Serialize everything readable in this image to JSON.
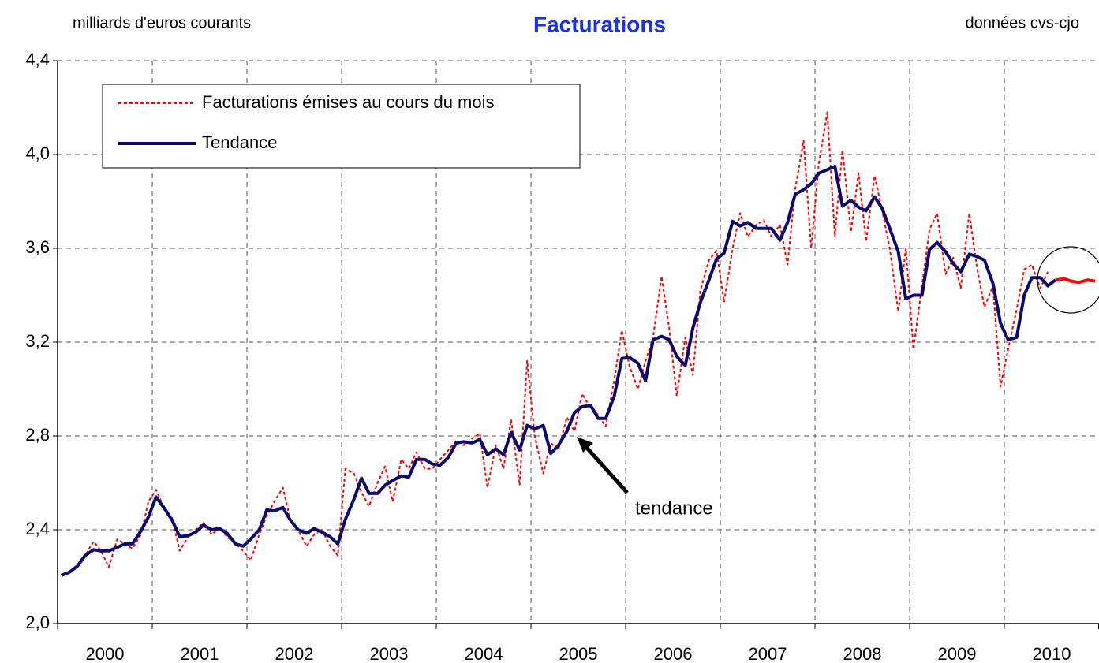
{
  "chart_data": {
    "type": "line",
    "title": "Facturations",
    "subtitle_left": "milliards d'euros courants",
    "subtitle_right": "données cvs-cjo",
    "annotation": "tendance",
    "legend": "upper left",
    "grid": true,
    "xlim": [
      2000,
      2011
    ],
    "xticks": [
      2000,
      2001,
      2002,
      2003,
      2004,
      2005,
      2006,
      2007,
      2008,
      2009,
      2010,
      2011
    ],
    "x_labels": [
      {
        "value": 2000.5,
        "label": "2000"
      },
      {
        "value": 2001.5,
        "label": "2001"
      },
      {
        "value": 2002.5,
        "label": "2002"
      },
      {
        "value": 2003.5,
        "label": "2003"
      },
      {
        "value": 2004.5,
        "label": "2004"
      },
      {
        "value": 2005.5,
        "label": "2005"
      },
      {
        "value": 2006.5,
        "label": "2006"
      },
      {
        "value": 2007.5,
        "label": "2007"
      },
      {
        "value": 2008.5,
        "label": "2008"
      },
      {
        "value": 2009.5,
        "label": "2009"
      },
      {
        "value": 2010.5,
        "label": "2010"
      }
    ],
    "ylim": [
      2.0,
      4.4
    ],
    "yticks": [
      {
        "value": 2.0,
        "label": "2,0"
      },
      {
        "value": 2.4,
        "label": "2,4"
      },
      {
        "value": 2.8,
        "label": "2,8"
      },
      {
        "value": 3.2,
        "label": "3,2"
      },
      {
        "value": 3.6,
        "label": "3,6"
      },
      {
        "value": 4.0,
        "label": "4,0"
      },
      {
        "value": 4.4,
        "label": "4,4"
      }
    ],
    "x": [
      2000.04,
      2000.13,
      2000.21,
      2000.29,
      2000.38,
      2000.46,
      2000.54,
      2000.63,
      2000.71,
      2000.79,
      2000.88,
      2000.96,
      2001.04,
      2001.13,
      2001.21,
      2001.29,
      2001.38,
      2001.46,
      2001.54,
      2001.63,
      2001.71,
      2001.79,
      2001.88,
      2001.96,
      2002.04,
      2002.13,
      2002.21,
      2002.29,
      2002.38,
      2002.46,
      2002.54,
      2002.63,
      2002.71,
      2002.79,
      2002.88,
      2002.96,
      2003.04,
      2003.13,
      2003.21,
      2003.29,
      2003.38,
      2003.46,
      2003.54,
      2003.63,
      2003.71,
      2003.79,
      2003.88,
      2003.96,
      2004.04,
      2004.13,
      2004.21,
      2004.29,
      2004.38,
      2004.46,
      2004.54,
      2004.63,
      2004.71,
      2004.79,
      2004.88,
      2004.96,
      2005.04,
      2005.13,
      2005.21,
      2005.29,
      2005.38,
      2005.46,
      2005.54,
      2005.63,
      2005.71,
      2005.79,
      2005.88,
      2005.96,
      2006.04,
      2006.13,
      2006.21,
      2006.29,
      2006.38,
      2006.46,
      2006.54,
      2006.63,
      2006.71,
      2006.79,
      2006.88,
      2006.96,
      2007.04,
      2007.13,
      2007.21,
      2007.29,
      2007.38,
      2007.46,
      2007.54,
      2007.63,
      2007.71,
      2007.79,
      2007.88,
      2007.96,
      2008.04,
      2008.13,
      2008.21,
      2008.29,
      2008.38,
      2008.46,
      2008.54,
      2008.63,
      2008.71,
      2008.79,
      2008.88,
      2008.96,
      2009.04,
      2009.13,
      2009.21,
      2009.29,
      2009.38,
      2009.46,
      2009.54,
      2009.63,
      2009.71,
      2009.79,
      2009.88,
      2009.96,
      2010.04,
      2010.13,
      2010.21,
      2010.29,
      2010.38,
      2010.46,
      2010.54,
      2010.63,
      2010.71,
      2010.79,
      2010.88,
      2010.96
    ],
    "series": [
      {
        "name": "Facturations émises au cours du mois",
        "color": "#ff0000",
        "style": "dashed",
        "values": [
          2.21,
          2.22,
          2.25,
          2.29,
          2.35,
          2.31,
          2.24,
          2.36,
          2.34,
          2.32,
          2.38,
          2.52,
          2.57,
          2.49,
          2.45,
          2.31,
          2.37,
          2.4,
          2.43,
          2.38,
          2.41,
          2.37,
          2.34,
          2.31,
          2.27,
          2.38,
          2.46,
          2.52,
          2.58,
          2.44,
          2.4,
          2.33,
          2.38,
          2.4,
          2.33,
          2.29,
          2.66,
          2.64,
          2.56,
          2.5,
          2.6,
          2.67,
          2.52,
          2.7,
          2.66,
          2.73,
          2.66,
          2.66,
          2.7,
          2.74,
          2.78,
          2.76,
          2.79,
          2.81,
          2.58,
          2.76,
          2.66,
          2.87,
          2.59,
          3.12,
          2.8,
          2.64,
          2.77,
          2.74,
          2.88,
          2.82,
          2.98,
          2.92,
          2.89,
          2.84,
          3.04,
          3.25,
          3.1,
          3.0,
          3.12,
          3.22,
          3.48,
          3.26,
          2.97,
          3.22,
          3.06,
          3.42,
          3.55,
          3.59,
          3.37,
          3.6,
          3.75,
          3.65,
          3.7,
          3.72,
          3.65,
          3.7,
          3.53,
          3.85,
          4.06,
          3.6,
          3.96,
          4.18,
          3.65,
          4.02,
          3.67,
          3.92,
          3.63,
          3.91,
          3.76,
          3.6,
          3.33,
          3.6,
          3.17,
          3.44,
          3.68,
          3.75,
          3.49,
          3.56,
          3.43,
          3.75,
          3.52,
          3.35,
          3.44,
          3.01,
          3.17,
          3.34,
          3.51,
          3.53,
          3.43,
          3.5,
          null,
          null,
          null,
          null,
          null,
          null
        ]
      },
      {
        "name": "Tendance",
        "color": "#0a0a6e",
        "style": "solid",
        "values": [
          2.205,
          2.22,
          2.245,
          2.29,
          2.315,
          2.31,
          2.31,
          2.325,
          2.34,
          2.34,
          2.395,
          2.455,
          2.54,
          2.49,
          2.44,
          2.37,
          2.375,
          2.39,
          2.42,
          2.4,
          2.405,
          2.385,
          2.34,
          2.33,
          2.36,
          2.4,
          2.485,
          2.48,
          2.495,
          2.44,
          2.4,
          2.385,
          2.405,
          2.39,
          2.37,
          2.34,
          2.445,
          2.53,
          2.62,
          2.555,
          2.555,
          2.59,
          2.61,
          2.63,
          2.625,
          2.7,
          2.7,
          2.68,
          2.675,
          2.71,
          2.77,
          2.775,
          2.77,
          2.785,
          2.72,
          2.745,
          2.72,
          2.815,
          2.74,
          2.845,
          2.83,
          2.845,
          2.725,
          2.76,
          2.82,
          2.9,
          2.925,
          2.93,
          2.875,
          2.875,
          2.97,
          3.13,
          3.135,
          3.11,
          3.035,
          3.21,
          3.225,
          3.21,
          3.14,
          3.1,
          3.26,
          3.37,
          3.465,
          3.555,
          3.58,
          3.715,
          3.695,
          3.71,
          3.685,
          3.685,
          3.685,
          3.635,
          3.71,
          3.83,
          3.85,
          3.875,
          3.92,
          3.935,
          3.95,
          3.78,
          3.805,
          3.775,
          3.76,
          3.82,
          3.77,
          3.685,
          3.585,
          3.385,
          3.4,
          3.4,
          3.595,
          3.625,
          3.585,
          3.535,
          3.5,
          3.575,
          3.565,
          3.55,
          3.45,
          3.28,
          3.21,
          3.22,
          3.4,
          3.475,
          3.475,
          3.44,
          3.465,
          null,
          null,
          null,
          null,
          null
        ]
      },
      {
        "color": "#ff0000",
        "style": "solid",
        "values": [
          null,
          null,
          null,
          null,
          null,
          null,
          null,
          null,
          null,
          null,
          null,
          null,
          null,
          null,
          null,
          null,
          null,
          null,
          null,
          null,
          null,
          null,
          null,
          null,
          null,
          null,
          null,
          null,
          null,
          null,
          null,
          null,
          null,
          null,
          null,
          null,
          null,
          null,
          null,
          null,
          null,
          null,
          null,
          null,
          null,
          null,
          null,
          null,
          null,
          null,
          null,
          null,
          null,
          null,
          null,
          null,
          null,
          null,
          null,
          null,
          null,
          null,
          null,
          null,
          null,
          null,
          null,
          null,
          null,
          null,
          null,
          null,
          null,
          null,
          null,
          null,
          null,
          null,
          null,
          null,
          null,
          null,
          null,
          null,
          null,
          null,
          null,
          null,
          null,
          null,
          null,
          null,
          null,
          null,
          null,
          null,
          null,
          null,
          null,
          null,
          null,
          null,
          null,
          null,
          null,
          null,
          null,
          null,
          null,
          null,
          null,
          null,
          null,
          null,
          null,
          null,
          null,
          null,
          null,
          null,
          null,
          null,
          null,
          null,
          null,
          null,
          3.465,
          3.47,
          3.46,
          3.455,
          3.465,
          3.46
        ]
      }
    ]
  }
}
